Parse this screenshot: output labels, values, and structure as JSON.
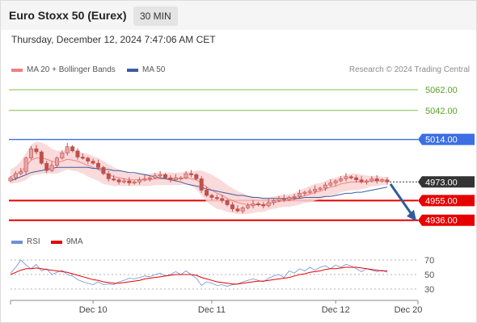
{
  "header": {
    "instrument": "Euro Stoxx 50 (Eurex)",
    "interval": "30 MIN"
  },
  "timestamp": "Thursday, December 12, 2024 7:47:06 AM CET",
  "legend": {
    "ma20": "MA 20 + Bollinger Bands",
    "ma50": "MA 50",
    "credit": "Research © 2024 Trading Central"
  },
  "rsi_legend": {
    "rsi": "RSI",
    "ma": "9MA"
  },
  "colors": {
    "ma20": "#f08080",
    "ma50": "#3a5fa0",
    "band": "#f9d4d4",
    "up": "#e7a3a3",
    "down": "#c0504d",
    "target_line": "#7fc241",
    "resistance": "#3b6fe3",
    "support": "#e60000",
    "last": "#333333",
    "arrow": "#2f5c9c"
  },
  "chart_data": {
    "type": "candlestick",
    "price_axis": {
      "ylim": [
        4928,
        5073
      ]
    },
    "levels": [
      {
        "value": 5062,
        "label": "5062.00",
        "kind": "target"
      },
      {
        "value": 5042,
        "label": "5042.00",
        "kind": "target"
      },
      {
        "value": 5014,
        "label": "5014.00",
        "kind": "resistance"
      },
      {
        "value": 4973,
        "label": "4973.00",
        "kind": "last"
      },
      {
        "value": 4955,
        "label": "4955.00",
        "kind": "support"
      },
      {
        "value": 4936,
        "label": "4936.00",
        "kind": "support"
      }
    ],
    "close": [
      4977,
      4981,
      4983,
      4996,
      5005,
      5002,
      4991,
      4984,
      4989,
      4996,
      5001,
      5007,
      5003,
      4997,
      4996,
      4993,
      4991,
      4987,
      4981,
      4976,
      4975,
      4973,
      4974,
      4972,
      4973,
      4975,
      4976,
      4977,
      4979,
      4980,
      4977,
      4975,
      4977,
      4977,
      4981,
      4980,
      4976,
      4965,
      4960,
      4958,
      4957,
      4955,
      4951,
      4947,
      4945,
      4948,
      4950,
      4952,
      4951,
      4950,
      4953,
      4955,
      4957,
      4956,
      4958,
      4959,
      4962,
      4963,
      4964,
      4966,
      4967,
      4970,
      4972,
      4974,
      4976,
      4978,
      4977,
      4975,
      4973,
      4974,
      4976,
      4974,
      4975,
      4973
    ],
    "ma20": [
      4978,
      4980,
      4983,
      4988,
      4994,
      4996,
      4996,
      4995,
      4993,
      4992,
      4993,
      4995,
      4994,
      4993,
      4991,
      4989,
      4987,
      4985,
      4982,
      4980,
      4978,
      4977,
      4976,
      4975,
      4975,
      4975,
      4975,
      4975,
      4976,
      4976,
      4976,
      4976,
      4976,
      4976,
      4977,
      4976,
      4975,
      4972,
      4968,
      4965,
      4962,
      4960,
      4957,
      4955,
      4953,
      4952,
      4951,
      4951,
      4951,
      4951,
      4952,
      4953,
      4954,
      4955,
      4955,
      4956,
      4958,
      4960,
      4961,
      4963,
      4964,
      4966,
      4968,
      4969,
      4971,
      4972,
      4973,
      4973,
      4973,
      4973,
      4974,
      4974,
      4974,
      4974
    ],
    "ma50": [
      4974,
      4976,
      4978,
      4980,
      4982,
      4983,
      4984,
      4985,
      4986,
      4987,
      4987,
      4987,
      4987,
      4987,
      4987,
      4987,
      4986,
      4986,
      4985,
      4985,
      4984,
      4984,
      4983,
      4982,
      4982,
      4981,
      4980,
      4979,
      4978,
      4977,
      4976,
      4975,
      4974,
      4973,
      4971,
      4970,
      4969,
      4968,
      4966,
      4965,
      4964,
      4963,
      4962,
      4961,
      4960,
      4960,
      4959,
      4958,
      4958,
      4957,
      4957,
      4957,
      4957,
      4957,
      4957,
      4957,
      4957,
      4958,
      4958,
      4958,
      4958,
      4959,
      4959,
      4960,
      4961,
      4962,
      4962,
      4963,
      4963,
      4964,
      4965,
      4966,
      4967,
      4968
    ],
    "band_half": [
      7,
      8,
      10,
      13,
      15,
      16,
      15,
      14,
      12,
      11,
      10,
      10,
      10,
      10,
      10,
      11,
      11,
      11,
      11,
      10,
      9,
      8,
      7,
      6,
      6,
      6,
      6,
      6,
      6,
      6,
      6,
      6,
      6,
      6,
      6,
      7,
      9,
      12,
      14,
      15,
      15,
      14,
      13,
      12,
      11,
      10,
      9,
      8,
      7,
      7,
      6,
      6,
      6,
      6,
      6,
      6,
      7,
      7,
      8,
      8,
      8,
      8,
      8,
      8,
      8,
      8,
      8,
      8,
      7,
      6,
      5,
      5,
      4,
      4
    ],
    "rsi": [
      52,
      60,
      70,
      63,
      58,
      64,
      55,
      58,
      50,
      53,
      56,
      50,
      48,
      43,
      40,
      38,
      36,
      40,
      36,
      37,
      36,
      40,
      42,
      45,
      44,
      46,
      48,
      47,
      50,
      52,
      48,
      50,
      54,
      50,
      55,
      50,
      45,
      35,
      40,
      38,
      35,
      36,
      34,
      36,
      37,
      40,
      42,
      44,
      42,
      40,
      45,
      48,
      50,
      46,
      55,
      52,
      58,
      55,
      60,
      56,
      60,
      62,
      58,
      63,
      60,
      64,
      62,
      58,
      54,
      58,
      56,
      54,
      56,
      53
    ],
    "rsi_ma": [
      50,
      53,
      56,
      58,
      58,
      59,
      58,
      57,
      56,
      55,
      54,
      53,
      51,
      49,
      47,
      45,
      43,
      42,
      40,
      39,
      38,
      38,
      39,
      40,
      41,
      42,
      44,
      45,
      46,
      47,
      48,
      49,
      50,
      50,
      50,
      50,
      49,
      46,
      44,
      42,
      40,
      39,
      38,
      37,
      37,
      38,
      39,
      40,
      41,
      41,
      42,
      43,
      44,
      45,
      46,
      48,
      50,
      51,
      53,
      54,
      55,
      57,
      58,
      58,
      59,
      60,
      60,
      60,
      59,
      58,
      57,
      56,
      55,
      55
    ],
    "rsi_axis": {
      "ylim": [
        20,
        80
      ],
      "ticks": [
        "70",
        "50",
        "30"
      ]
    },
    "x_ticks": [
      {
        "label": "Dec 10",
        "index": 16
      },
      {
        "label": "Dec 11",
        "index": 39
      },
      {
        "label": "Dec 12",
        "index": 63
      }
    ],
    "x_end_label": "Dec 20",
    "projection": {
      "from": 4971,
      "to": 4936
    }
  }
}
